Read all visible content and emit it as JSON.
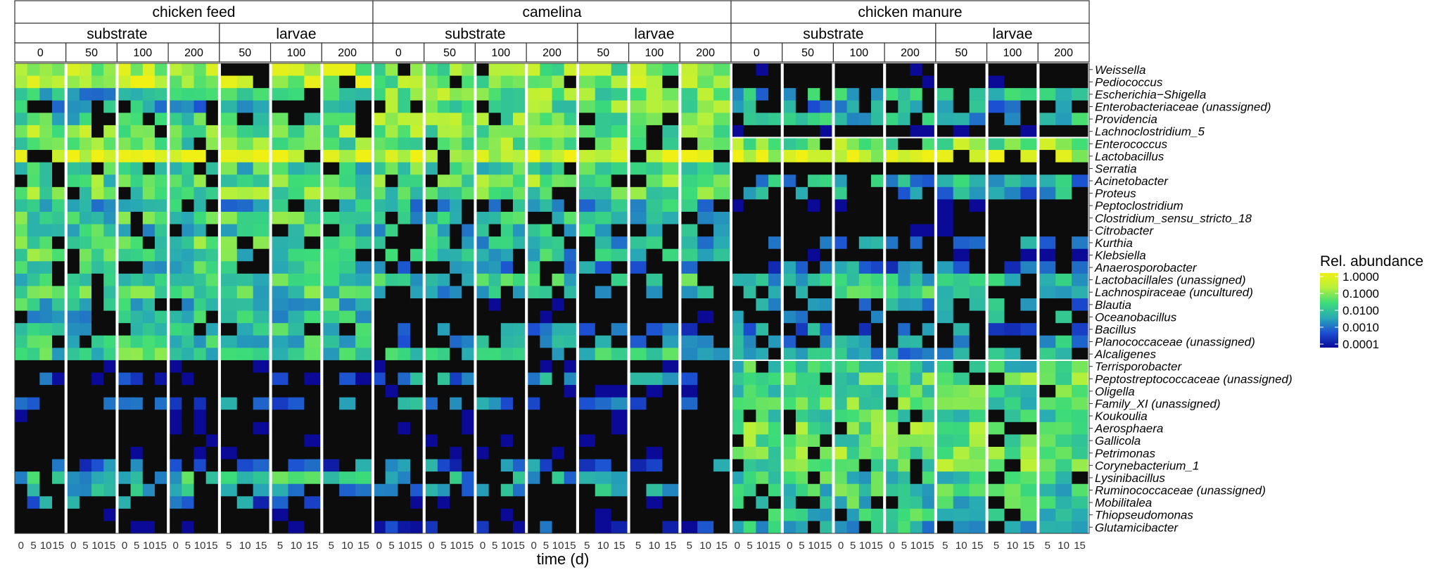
{
  "chart_data": {
    "type": "heatmap",
    "xlabel": "time (d)",
    "legend": {
      "title": "Rel. abundance",
      "ticks": [
        "1.0000",
        "0.1000",
        "0.0100",
        "0.0010",
        "0.0001"
      ],
      "scale": "log10",
      "range": [
        0.0001,
        1.0
      ],
      "colors": [
        "#0a0a96",
        "#1c50d2",
        "#28aab4",
        "#3cdc78",
        "#b4f03c",
        "#f0f014"
      ],
      "absent_color": "#0c0c0c",
      "placement": "right"
    },
    "feeds": [
      {
        "name": "chicken feed",
        "substrate_times": [
          "0",
          "50",
          "100",
          "200"
        ],
        "larvae_times": [
          "50",
          "100",
          "200"
        ]
      },
      {
        "name": "camelina",
        "substrate_times": [
          "0",
          "50",
          "100",
          "200"
        ],
        "larvae_times": [
          "50",
          "100",
          "200"
        ]
      },
      {
        "name": "chicken manure",
        "substrate_times": [
          "0",
          "50",
          "100",
          "200"
        ],
        "larvae_times": [
          "50",
          "100",
          "200"
        ]
      }
    ],
    "matrices": [
      "substrate",
      "larvae"
    ],
    "substrate_days": [
      "0",
      "5",
      "10",
      "15"
    ],
    "larvae_days": [
      "5",
      "10",
      "15"
    ],
    "genera": [
      "Weissella",
      "Pediococcus",
      "Escherichia−Shigella",
      "Enterobacteriaceae (unassigned)",
      "Providencia",
      "Lachnoclostridium_5",
      "Enterococcus",
      "Lactobacillus",
      "Serratia",
      "Acinetobacter",
      "Proteus",
      "Peptoclostridium",
      "Clostridium_sensu_stricto_18",
      "Citrobacter",
      "Kurthia",
      "Klebsiella",
      "Anaerosporobacter",
      "Lactobacillales (unassigned)",
      "Lachnospiraceae (uncultured)",
      "Blautia",
      "Oceanobacillus",
      "Bacillus",
      "Planococcaceae (unassigned)",
      "Alcaligenes",
      "Terrisporobacter",
      "Peptostreptococcaceae (unassigned)",
      "Oligella",
      "Family_XI (unassigned)",
      "Koukoulia",
      "Aerosphaera",
      "Gallicola",
      "Petrimonas",
      "Corynebacterium_1",
      "Lysinibacillus",
      "Ruminococcaceae (unassigned)",
      "Mobilitalea",
      "Thiopseudomonas",
      "Glutamicibacter"
    ],
    "typical_log10_abundance": {
      "chicken feed": [
        -0.8,
        -0.7,
        -2.2,
        -2.4,
        -2.0,
        -1.2,
        -1.5,
        -0.3,
        -1.8,
        -1.6,
        -1.5,
        -2.3,
        -1.8,
        -2.0,
        -1.6,
        -1.7,
        -2.0,
        -1.8,
        -1.8,
        -2.0,
        -2.2,
        -1.9,
        -2.0,
        -1.8,
        -5,
        -3.4,
        -5,
        -2.8,
        -5,
        -5,
        -5,
        -5,
        -3.0,
        -2.0,
        -2.6,
        -3.0,
        -5,
        -5
      ],
      "camelina": [
        -1.2,
        -1.1,
        -1.3,
        -1.4,
        -1.3,
        -1.3,
        -1.2,
        -0.3,
        -1.7,
        -1.3,
        -1.7,
        -2.3,
        -2.0,
        -2.2,
        -2.3,
        -2.2,
        -2.6,
        -2.0,
        -2.4,
        -5,
        -5,
        -3.0,
        -2.8,
        -2.0,
        -5,
        -2.7,
        -5,
        -2.8,
        -5,
        -5,
        -5,
        -5,
        -3.0,
        -2.6,
        -2.5,
        -5,
        -5,
        -3.4
      ],
      "chicken manure": [
        -5,
        -5,
        -2.3,
        -2.7,
        -2.2,
        -5,
        -1.2,
        -0.4,
        -5,
        -2.4,
        -2.6,
        -5,
        -5,
        -5,
        -2.8,
        -5,
        -2.9,
        -2.2,
        -1.9,
        -2.6,
        -2.7,
        -2.8,
        -2.5,
        -2.4,
        -1.8,
        -1.6,
        -1.7,
        -1.6,
        -1.7,
        -1.4,
        -1.5,
        -1.3,
        -1.4,
        -1.9,
        -1.8,
        -1.9,
        -2.0,
        -2.3
      ]
    },
    "row_split_after_genus": "Alcaligenes"
  }
}
